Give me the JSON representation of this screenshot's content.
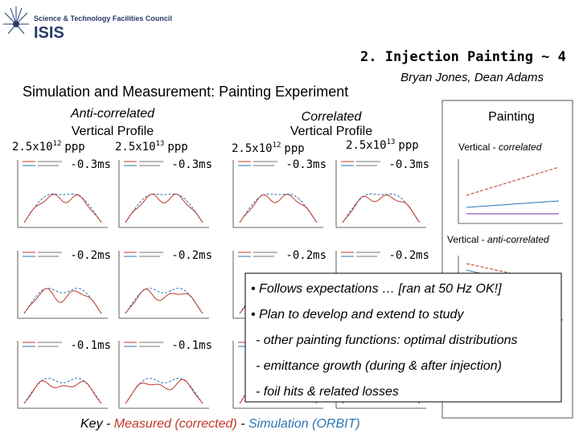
{
  "header": {
    "org": "Science & Technology Facilities Council",
    "logo": "ISIS",
    "title": "2. Injection Painting ~ 4",
    "authors": "Bryan Jones, Dean Adams"
  },
  "subtitle": "Simulation and Measurement: Painting Experiment",
  "groups": [
    {
      "title": "Anti-correlated",
      "subtitle": "Vertical Profile",
      "intensities": [
        {
          "mantissa": "2.5x10",
          "exponent": "12",
          "unit": "ppp"
        },
        {
          "mantissa": "2.5x10",
          "exponent": "13",
          "unit": "ppp"
        }
      ]
    },
    {
      "title": "Correlated",
      "subtitle": "Vertical Profile",
      "intensities": [
        {
          "mantissa": "2.5x10",
          "exponent": "12",
          "unit": "ppp"
        },
        {
          "mantissa": "2.5x10",
          "exponent": "13",
          "unit": "ppp"
        }
      ]
    }
  ],
  "time_labels": [
    [
      "-0.3ms",
      "-0.3ms",
      "-0.3ms",
      "-0.3ms"
    ],
    [
      "-0.2ms",
      "-0.2ms",
      "-0.2ms",
      "-0.2ms"
    ],
    [
      "-0.1ms",
      "-0.1ms"
    ]
  ],
  "painting_panel": {
    "title": "Painting",
    "labels": [
      [
        "Vertical - ",
        "correlated"
      ],
      [
        "Vertical - ",
        "anti-correlated"
      ]
    ]
  },
  "notes": {
    "bullets": [
      "• Follows expectations … [ran at 50 Hz OK!]",
      "• Plan to develop and extend to study"
    ],
    "sub_items": [
      "- other painting functions: optimal distributions",
      "- emittance growth (during & after injection)",
      "- foil hits & related losses"
    ]
  },
  "key": {
    "parts": [
      "Key - ",
      "Measured (corrected)",
      " - ",
      "Simulation (ORBIT)"
    ]
  }
}
